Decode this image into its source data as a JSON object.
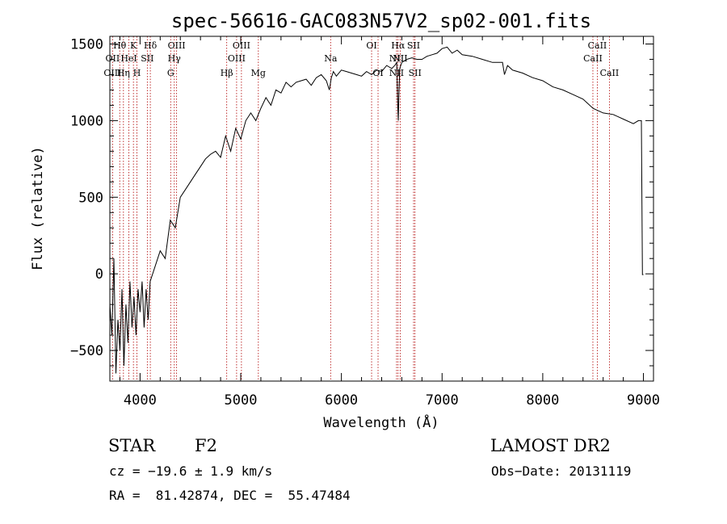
{
  "chart_data": {
    "type": "line",
    "title": "spec-56616-GAC083N57V2_sp02-001.fits",
    "xlabel": "Wavelength (Å)",
    "ylabel": "Flux (relative)",
    "xlim": [
      3700,
      9100
    ],
    "ylim": [
      -700,
      1550
    ],
    "xticks": [
      4000,
      5000,
      6000,
      7000,
      8000,
      9000
    ],
    "yticks": [
      -500,
      0,
      500,
      1000,
      1500
    ],
    "series": [
      {
        "x": [
          3700,
          3720,
          3740,
          3760,
          3780,
          3800,
          3820,
          3840,
          3860,
          3880,
          3900,
          3920,
          3940,
          3960,
          3980,
          4000,
          4020,
          4040,
          4060,
          4080,
          4100,
          4150,
          4200,
          4250,
          4300,
          4350,
          4400,
          4450,
          4500,
          4550,
          4600,
          4650,
          4700,
          4750,
          4800,
          4850,
          4900,
          4950,
          5000,
          5050,
          5100,
          5150,
          5200,
          5250,
          5300,
          5350,
          5400,
          5450,
          5500,
          5550,
          5600,
          5650,
          5700,
          5750,
          5800,
          5850,
          5880,
          5900,
          5920,
          5950,
          6000,
          6050,
          6100,
          6150,
          6200,
          6250,
          6300,
          6350,
          6400,
          6450,
          6500,
          6530,
          6550,
          6560,
          6565,
          6570,
          6580,
          6600,
          6650,
          6700,
          6750,
          6800,
          6850,
          6900,
          6950,
          7000,
          7050,
          7100,
          7150,
          7200,
          7300,
          7400,
          7500,
          7600,
          7620,
          7650,
          7700,
          7800,
          7900,
          8000,
          8100,
          8200,
          8300,
          8400,
          8500,
          8600,
          8700,
          8800,
          8900,
          8950,
          8980,
          8990,
          9000
        ],
        "y": [
          -200,
          -400,
          100,
          -650,
          -300,
          -500,
          -100,
          -600,
          -200,
          -450,
          -50,
          -350,
          -150,
          -400,
          -100,
          -250,
          -50,
          -350,
          -100,
          -300,
          -50,
          50,
          150,
          100,
          350,
          300,
          500,
          550,
          600,
          650,
          700,
          750,
          780,
          800,
          760,
          900,
          800,
          950,
          880,
          1000,
          1050,
          1000,
          1080,
          1150,
          1100,
          1200,
          1180,
          1250,
          1220,
          1250,
          1260,
          1270,
          1230,
          1280,
          1300,
          1260,
          1200,
          1280,
          1320,
          1290,
          1330,
          1320,
          1310,
          1300,
          1290,
          1320,
          1300,
          1330,
          1320,
          1360,
          1340,
          1360,
          1380,
          1100,
          1000,
          1150,
          1340,
          1380,
          1400,
          1410,
          1400,
          1400,
          1420,
          1430,
          1440,
          1470,
          1480,
          1440,
          1460,
          1430,
          1420,
          1400,
          1380,
          1380,
          1300,
          1360,
          1330,
          1310,
          1280,
          1260,
          1220,
          1200,
          1170,
          1140,
          1080,
          1050,
          1040,
          1010,
          980,
          1000,
          1000,
          -5,
          -5
        ]
      }
    ],
    "lines": [
      {
        "label": "Hθ",
        "x": 3798,
        "row": 0
      },
      {
        "label": "OII",
        "x": 3727,
        "row": 1
      },
      {
        "label": "OIII",
        "x": 3727,
        "row": 2
      },
      {
        "label": "K",
        "x": 3934,
        "row": 0
      },
      {
        "label": "HeI",
        "x": 3889,
        "row": 1
      },
      {
        "label": "Hη",
        "x": 3835,
        "row": 2
      },
      {
        "label": "Hδ",
        "x": 4102,
        "row": 0
      },
      {
        "label": "SII",
        "x": 4072,
        "row": 1
      },
      {
        "label": "H",
        "x": 3969,
        "row": 2
      },
      {
        "label": "OIII",
        "x": 4363,
        "row": 0
      },
      {
        "label": "Hγ",
        "x": 4340,
        "row": 1
      },
      {
        "label": "G",
        "x": 4304,
        "row": 2
      },
      {
        "label": "OIII",
        "x": 5007,
        "row": 0
      },
      {
        "label": "OIII",
        "x": 4959,
        "row": 1
      },
      {
        "label": "Hβ",
        "x": 4861,
        "row": 2
      },
      {
        "label": "Mg",
        "x": 5175,
        "row": 2
      },
      {
        "label": "Na",
        "x": 5893,
        "row": 1
      },
      {
        "label": "OI",
        "x": 6300,
        "row": 0
      },
      {
        "label": "OI",
        "x": 6364,
        "row": 2
      },
      {
        "label": "Hα",
        "x": 6563,
        "row": 0
      },
      {
        "label": "SII",
        "x": 6717,
        "row": 0
      },
      {
        "label": "NII",
        "x": 6548,
        "row": 1
      },
      {
        "label": "NII",
        "x": 6584,
        "row": 1
      },
      {
        "label": "NII",
        "x": 6548,
        "row": 2
      },
      {
        "label": "SII",
        "x": 6731,
        "row": 2
      },
      {
        "label": "CaII",
        "x": 8542,
        "row": 0
      },
      {
        "label": "CaII",
        "x": 8498,
        "row": 1
      },
      {
        "label": "CaII",
        "x": 8662,
        "row": 2
      }
    ]
  },
  "info": {
    "class": "STAR",
    "subclass": "F2",
    "survey": "LAMOST DR2",
    "cz": "cz = −19.6 ± 1.9 km/s",
    "obsdate": "Obs−Date: 20131119",
    "radec": "RA =  81.42874, DEC =  55.47484"
  }
}
